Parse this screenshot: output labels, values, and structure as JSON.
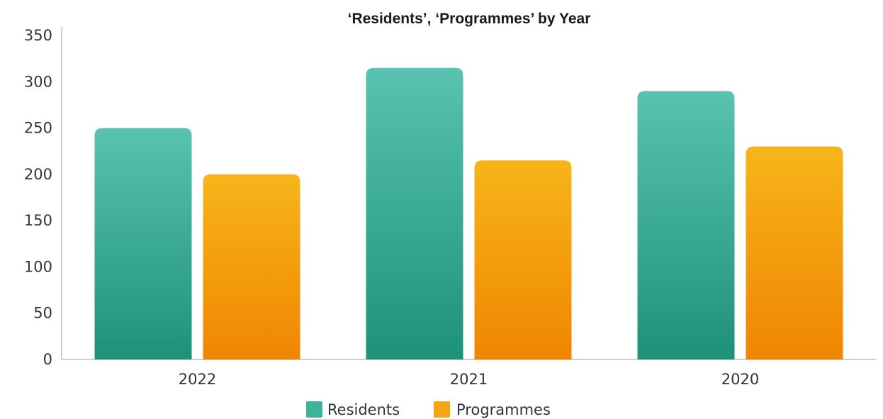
{
  "chart_data": {
    "type": "bar",
    "title": "‘Residents’, ‘Programmes’ by Year",
    "categories": [
      "2022",
      "2021",
      "2020"
    ],
    "series": [
      {
        "name": "Residents",
        "values": [
          250,
          315,
          290
        ],
        "color": "#3cb39b",
        "color_top": "#58c3b0",
        "color_bottom": "#1e9179"
      },
      {
        "name": "Programmes",
        "values": [
          200,
          215,
          230
        ],
        "color": "#f4a516",
        "color_top": "#f7b51a",
        "color_bottom": "#f08502"
      }
    ],
    "ylim": [
      0,
      350
    ],
    "yticks": [
      "0",
      "50",
      "100",
      "150",
      "200",
      "250",
      "300",
      "350"
    ],
    "xlabel": "",
    "ylabel": "",
    "grid": false,
    "legend_position": "bottom-center"
  }
}
